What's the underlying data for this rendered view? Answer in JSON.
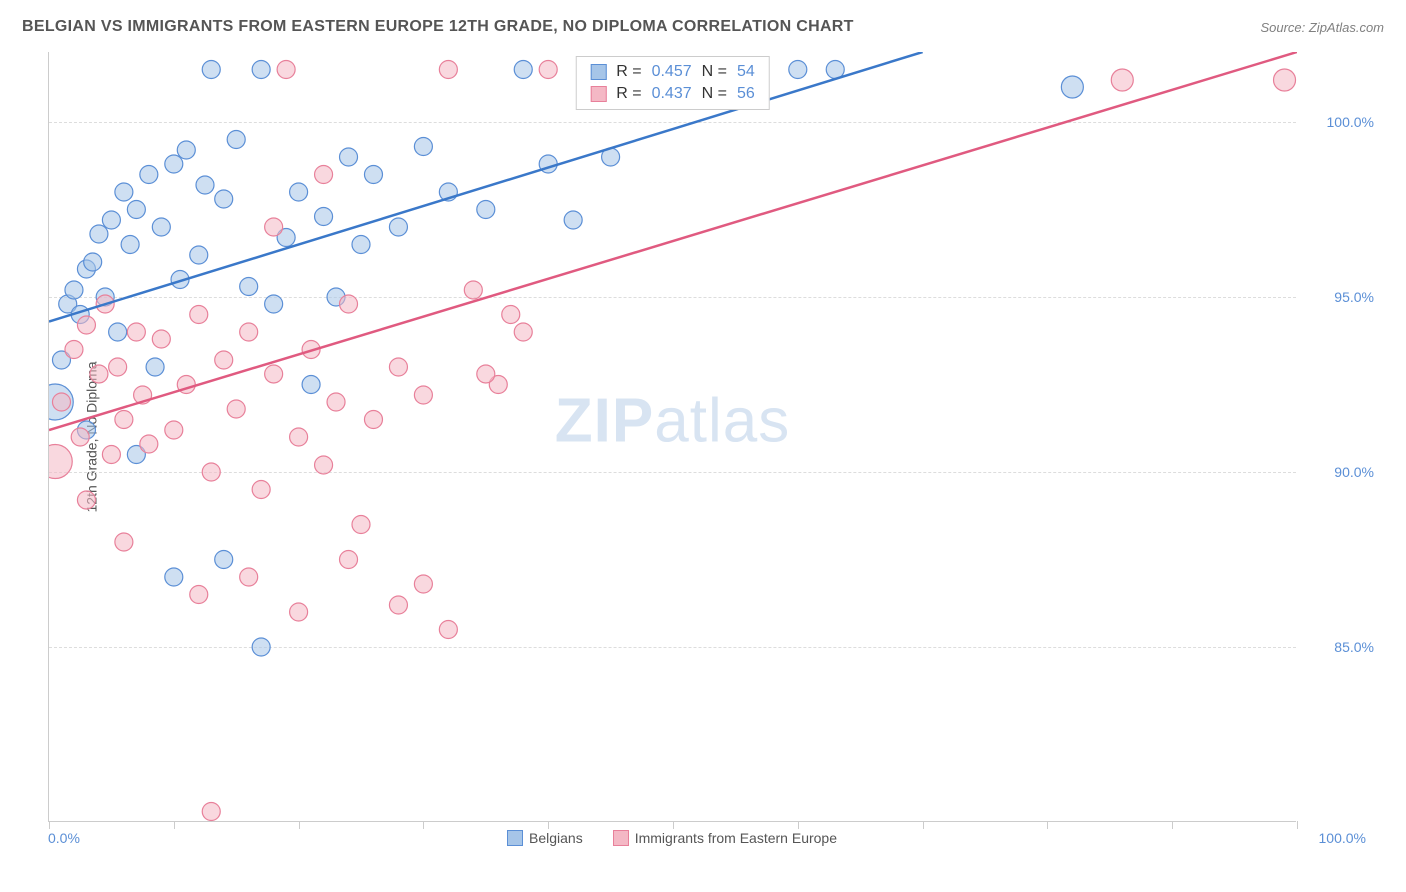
{
  "header": {
    "title": "BELGIAN VS IMMIGRANTS FROM EASTERN EUROPE 12TH GRADE, NO DIPLOMA CORRELATION CHART",
    "source": "Source: ZipAtlas.com"
  },
  "chart": {
    "type": "scatter",
    "y_label": "12th Grade, No Diploma",
    "watermark": "ZIPatlas",
    "background_color": "#ffffff",
    "grid_color": "#dddddd",
    "axis_color": "#cccccc",
    "xlim": [
      0,
      100
    ],
    "ylim": [
      80,
      102
    ],
    "x_ticks": [
      0,
      10,
      20,
      30,
      40,
      50,
      60,
      70,
      80,
      90,
      100
    ],
    "y_ticks": [
      {
        "value": 85,
        "label": "85.0%"
      },
      {
        "value": 90,
        "label": "90.0%"
      },
      {
        "value": 95,
        "label": "95.0%"
      },
      {
        "value": 100,
        "label": "100.0%"
      }
    ],
    "x_axis_labels": {
      "min": "0.0%",
      "max": "100.0%"
    },
    "series": [
      {
        "name": "Belgians",
        "fill_color": "#a6c5e8",
        "fill_opacity": 0.55,
        "stroke_color": "#5b8fd6",
        "line_color": "#3a78c9",
        "marker_radius": 9,
        "r_value": "0.457",
        "n_value": "54",
        "regression": {
          "x1": 0,
          "y1": 94.3,
          "x2": 70,
          "y2": 102
        },
        "points": [
          {
            "x": 0.5,
            "y": 92.0,
            "r": 18
          },
          {
            "x": 1,
            "y": 93.2
          },
          {
            "x": 1.5,
            "y": 94.8
          },
          {
            "x": 2,
            "y": 95.2
          },
          {
            "x": 2.5,
            "y": 94.5
          },
          {
            "x": 3,
            "y": 95.8
          },
          {
            "x": 3.5,
            "y": 96.0
          },
          {
            "x": 4,
            "y": 96.8
          },
          {
            "x": 4.5,
            "y": 95.0
          },
          {
            "x": 5,
            "y": 97.2
          },
          {
            "x": 5.5,
            "y": 94.0
          },
          {
            "x": 6,
            "y": 98.0
          },
          {
            "x": 6.5,
            "y": 96.5
          },
          {
            "x": 7,
            "y": 97.5
          },
          {
            "x": 8,
            "y": 98.5
          },
          {
            "x": 8.5,
            "y": 93.0
          },
          {
            "x": 9,
            "y": 97.0
          },
          {
            "x": 10,
            "y": 98.8
          },
          {
            "x": 10.5,
            "y": 95.5
          },
          {
            "x": 11,
            "y": 99.2
          },
          {
            "x": 12,
            "y": 96.2
          },
          {
            "x": 12.5,
            "y": 98.2
          },
          {
            "x": 13,
            "y": 101.5
          },
          {
            "x": 14,
            "y": 97.8
          },
          {
            "x": 15,
            "y": 99.5
          },
          {
            "x": 16,
            "y": 95.3
          },
          {
            "x": 17,
            "y": 101.5
          },
          {
            "x": 18,
            "y": 94.8
          },
          {
            "x": 19,
            "y": 96.7
          },
          {
            "x": 20,
            "y": 98.0
          },
          {
            "x": 21,
            "y": 92.5
          },
          {
            "x": 22,
            "y": 97.3
          },
          {
            "x": 23,
            "y": 95.0
          },
          {
            "x": 24,
            "y": 99.0
          },
          {
            "x": 25,
            "y": 96.5
          },
          {
            "x": 26,
            "y": 98.5
          },
          {
            "x": 28,
            "y": 97.0
          },
          {
            "x": 30,
            "y": 99.3
          },
          {
            "x": 32,
            "y": 98.0
          },
          {
            "x": 35,
            "y": 97.5
          },
          {
            "x": 38,
            "y": 101.5
          },
          {
            "x": 40,
            "y": 98.8
          },
          {
            "x": 42,
            "y": 97.2
          },
          {
            "x": 45,
            "y": 99.0
          },
          {
            "x": 48,
            "y": 101.5
          },
          {
            "x": 10,
            "y": 87.0
          },
          {
            "x": 17,
            "y": 85.0
          },
          {
            "x": 7,
            "y": 90.5
          },
          {
            "x": 3,
            "y": 91.2
          },
          {
            "x": 60,
            "y": 101.5
          },
          {
            "x": 63,
            "y": 101.5
          },
          {
            "x": 82,
            "y": 101.0,
            "r": 11
          },
          {
            "x": 14,
            "y": 87.5
          }
        ]
      },
      {
        "name": "Immigrants from Eastern Europe",
        "fill_color": "#f4b8c5",
        "fill_opacity": 0.55,
        "stroke_color": "#e8809a",
        "line_color": "#e05a80",
        "marker_radius": 9,
        "r_value": "0.437",
        "n_value": "56",
        "regression": {
          "x1": 0,
          "y1": 91.2,
          "x2": 100,
          "y2": 102
        },
        "points": [
          {
            "x": 0.5,
            "y": 90.3,
            "r": 17
          },
          {
            "x": 1,
            "y": 92.0
          },
          {
            "x": 2,
            "y": 93.5
          },
          {
            "x": 2.5,
            "y": 91.0
          },
          {
            "x": 3,
            "y": 94.2
          },
          {
            "x": 4,
            "y": 92.8
          },
          {
            "x": 4.5,
            "y": 94.8
          },
          {
            "x": 5,
            "y": 90.5
          },
          {
            "x": 5.5,
            "y": 93.0
          },
          {
            "x": 6,
            "y": 91.5
          },
          {
            "x": 7,
            "y": 94.0
          },
          {
            "x": 7.5,
            "y": 92.2
          },
          {
            "x": 8,
            "y": 90.8
          },
          {
            "x": 9,
            "y": 93.8
          },
          {
            "x": 10,
            "y": 91.2
          },
          {
            "x": 11,
            "y": 92.5
          },
          {
            "x": 12,
            "y": 94.5
          },
          {
            "x": 13,
            "y": 90.0
          },
          {
            "x": 14,
            "y": 93.2
          },
          {
            "x": 15,
            "y": 91.8
          },
          {
            "x": 16,
            "y": 94.0
          },
          {
            "x": 17,
            "y": 89.5
          },
          {
            "x": 18,
            "y": 92.8
          },
          {
            "x": 19,
            "y": 101.5
          },
          {
            "x": 20,
            "y": 91.0
          },
          {
            "x": 21,
            "y": 93.5
          },
          {
            "x": 22,
            "y": 90.2
          },
          {
            "x": 23,
            "y": 92.0
          },
          {
            "x": 24,
            "y": 94.8
          },
          {
            "x": 25,
            "y": 88.5
          },
          {
            "x": 26,
            "y": 91.5
          },
          {
            "x": 28,
            "y": 93.0
          },
          {
            "x": 30,
            "y": 92.2
          },
          {
            "x": 32,
            "y": 101.5
          },
          {
            "x": 34,
            "y": 95.2
          },
          {
            "x": 36,
            "y": 92.5
          },
          {
            "x": 38,
            "y": 94.0
          },
          {
            "x": 40,
            "y": 101.5
          },
          {
            "x": 3,
            "y": 89.2
          },
          {
            "x": 6,
            "y": 88.0
          },
          {
            "x": 12,
            "y": 86.5
          },
          {
            "x": 16,
            "y": 87.0
          },
          {
            "x": 20,
            "y": 86.0
          },
          {
            "x": 24,
            "y": 87.5
          },
          {
            "x": 28,
            "y": 86.2
          },
          {
            "x": 35,
            "y": 92.8
          },
          {
            "x": 30,
            "y": 86.8
          },
          {
            "x": 32,
            "y": 85.5
          },
          {
            "x": 13,
            "y": 80.3
          },
          {
            "x": 86,
            "y": 101.2,
            "r": 11
          },
          {
            "x": 99,
            "y": 101.2,
            "r": 11
          },
          {
            "x": 37,
            "y": 94.5
          },
          {
            "x": 22,
            "y": 98.5
          },
          {
            "x": 18,
            "y": 97.0
          }
        ]
      }
    ],
    "bottom_legend": [
      {
        "label": "Belgians",
        "fill": "#a6c5e8",
        "stroke": "#5b8fd6"
      },
      {
        "label": "Immigrants from Eastern Europe",
        "fill": "#f4b8c5",
        "stroke": "#e8809a"
      }
    ],
    "top_legend_labels": {
      "r": "R =",
      "n": "N ="
    }
  }
}
